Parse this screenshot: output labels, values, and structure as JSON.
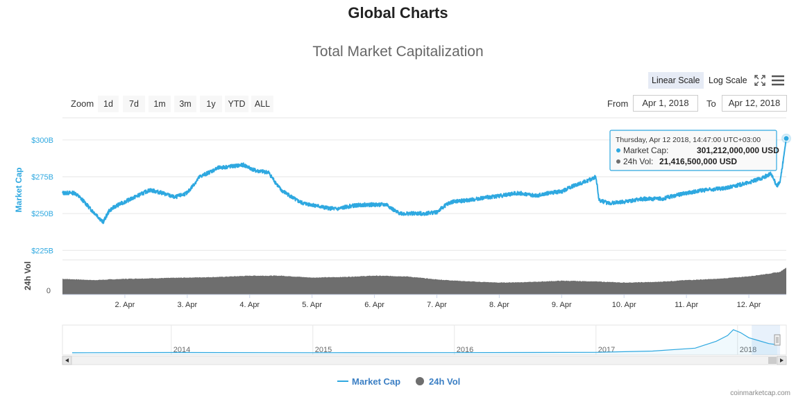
{
  "page": {
    "heading": "Global Charts",
    "credit": "coinmarketcap.com"
  },
  "toolbar": {
    "linear_scale_label": "Linear Scale",
    "log_scale_label": "Log Scale",
    "zoom_label": "Zoom",
    "zoom_buttons": [
      "1d",
      "7d",
      "1m",
      "3m",
      "1y",
      "YTD",
      "ALL"
    ],
    "from_label": "From",
    "from_value": "Apr 1, 2018",
    "to_label": "To",
    "to_value": "Apr 12, 2018"
  },
  "tooltip": {
    "header": "Thursday, Apr 12 2018, 14:47:00 UTC+03:00",
    "market_cap_label": "Market Cap:",
    "market_cap_value": "301,212,000,000 USD",
    "volume_label": "24h Vol:",
    "volume_value": "21,416,500,000 USD"
  },
  "colors": {
    "market_cap": "#2ea8e0",
    "volume": "#6e6e6e",
    "active_scale": "#e6ebf5",
    "accent_label": "#3b7fc4"
  },
  "icons": {
    "fullscreen": "fullscreen-icon",
    "menu": "hamburger-menu-icon",
    "navigator_left": "arrow-left-icon",
    "navigator_right": "arrow-right-icon"
  },
  "chart_data": {
    "type": "line",
    "title": "Total Market Capitalization",
    "x_tick_labels": [
      "2. Apr",
      "3. Apr",
      "4. Apr",
      "5. Apr",
      "6. Apr",
      "7. Apr",
      "8. Apr",
      "9. Apr",
      "10. Apr",
      "11. Apr",
      "12. Apr"
    ],
    "x_range_days": [
      1.0,
      12.6
    ],
    "market_cap_axis": {
      "label": "Market Cap",
      "tick_labels": [
        "$225B",
        "$250B",
        "$275B",
        "$300B"
      ],
      "tick_values": [
        225,
        250,
        275,
        300
      ],
      "ylim": [
        219,
        315
      ]
    },
    "volume_axis": {
      "label": "24h Vol",
      "tick_labels": [
        "0"
      ],
      "ylim": [
        0,
        27
      ]
    },
    "series": [
      {
        "name": "Market Cap",
        "unit": "USD billions",
        "x_days": [
          1.0,
          1.2,
          1.35,
          1.45,
          1.55,
          1.65,
          1.75,
          1.85,
          2.0,
          2.2,
          2.4,
          2.6,
          2.8,
          3.0,
          3.2,
          3.35,
          3.5,
          3.7,
          3.9,
          4.1,
          4.3,
          4.5,
          4.65,
          4.75,
          4.85,
          5.0,
          5.2,
          5.4,
          5.6,
          5.8,
          6.0,
          6.2,
          6.35,
          6.45,
          6.6,
          6.8,
          7.0,
          7.15,
          7.25,
          7.5,
          7.8,
          8.0,
          8.3,
          8.6,
          8.8,
          9.0,
          9.2,
          9.4,
          9.55,
          9.6,
          9.75,
          10.0,
          10.3,
          10.6,
          10.8,
          11.0,
          11.3,
          11.6,
          11.8,
          12.0,
          12.2,
          12.35,
          12.45,
          12.5,
          12.6
        ],
        "values": [
          264,
          264,
          258,
          253,
          249,
          244,
          252,
          255,
          258,
          262,
          266,
          264,
          261,
          264,
          275,
          278,
          281,
          282,
          283,
          279,
          278,
          266,
          262,
          259,
          257,
          256,
          254,
          253,
          255,
          256,
          256,
          256,
          251,
          250,
          250,
          250,
          251,
          256,
          258,
          259,
          261,
          262,
          264,
          262,
          264,
          265,
          269,
          272,
          275,
          259,
          257,
          258,
          260,
          260,
          262,
          264,
          266,
          267,
          269,
          271,
          274,
          277,
          269,
          271,
          301
        ]
      },
      {
        "name": "24h Vol",
        "unit": "USD billions",
        "x_days": [
          1.0,
          1.5,
          2.0,
          2.5,
          3.0,
          3.5,
          4.0,
          4.5,
          5.0,
          5.5,
          6.0,
          6.5,
          7.0,
          7.5,
          8.0,
          8.5,
          9.0,
          9.5,
          10.0,
          10.5,
          11.0,
          11.5,
          12.0,
          12.3,
          12.5,
          12.6
        ],
        "values": [
          12.5,
          11.5,
          12.5,
          13.0,
          13.5,
          14.0,
          15.0,
          15.0,
          13.5,
          14.0,
          15.0,
          14.5,
          12.0,
          10.5,
          9.5,
          10.0,
          11.0,
          10.5,
          9.5,
          10.0,
          11.5,
          12.5,
          14.5,
          16.5,
          18.0,
          21.4
        ]
      }
    ],
    "navigator": {
      "year_labels": [
        "2014",
        "2015",
        "2016",
        "2017",
        "2018"
      ],
      "x_years": [
        2013.3,
        2014.0,
        2015.0,
        2016.0,
        2017.0,
        2017.4,
        2017.7,
        2017.85,
        2017.93,
        2017.97,
        2018.02,
        2018.08,
        2018.15,
        2018.22,
        2018.28
      ],
      "values": [
        2,
        12,
        6,
        7,
        18,
        60,
        160,
        400,
        600,
        800,
        700,
        520,
        420,
        320,
        280
      ]
    },
    "legend": {
      "placement": "bottom-center",
      "entries": [
        "Market Cap",
        "24h Vol"
      ]
    },
    "grid": true
  }
}
